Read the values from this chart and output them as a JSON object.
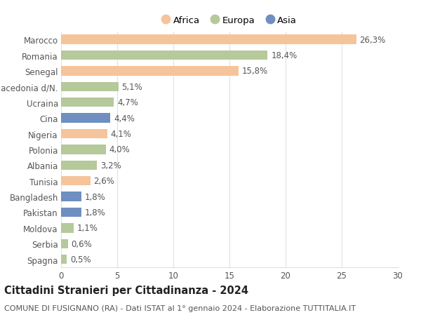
{
  "categories": [
    "Marocco",
    "Romania",
    "Senegal",
    "Macedonia d/N.",
    "Ucraina",
    "Cina",
    "Nigeria",
    "Polonia",
    "Albania",
    "Tunisia",
    "Bangladesh",
    "Pakistan",
    "Moldova",
    "Serbia",
    "Spagna"
  ],
  "values": [
    26.3,
    18.4,
    15.8,
    5.1,
    4.7,
    4.4,
    4.1,
    4.0,
    3.2,
    2.6,
    1.8,
    1.8,
    1.1,
    0.6,
    0.5
  ],
  "labels": [
    "26,3%",
    "18,4%",
    "15,8%",
    "5,1%",
    "4,7%",
    "4,4%",
    "4,1%",
    "4,0%",
    "3,2%",
    "2,6%",
    "1,8%",
    "1,8%",
    "1,1%",
    "0,6%",
    "0,5%"
  ],
  "continents": [
    "Africa",
    "Europa",
    "Africa",
    "Europa",
    "Europa",
    "Asia",
    "Africa",
    "Europa",
    "Europa",
    "Africa",
    "Asia",
    "Asia",
    "Europa",
    "Europa",
    "Europa"
  ],
  "colors": {
    "Africa": "#F5C49A",
    "Europa": "#B5C99A",
    "Asia": "#6E8FBF"
  },
  "xlim": [
    0,
    30
  ],
  "xticks": [
    0,
    5,
    10,
    15,
    20,
    25,
    30
  ],
  "title_bold": "Cittadini Stranieri per Cittadinanza - 2024",
  "subtitle": "COMUNE DI FUSIGNANO (RA) - Dati ISTAT al 1° gennaio 2024 - Elaborazione TUTTITALIA.IT",
  "background_color": "#ffffff",
  "grid_color": "#e0e0e0",
  "bar_height": 0.6,
  "label_fontsize": 8.5,
  "tick_fontsize": 8.5,
  "title_fontsize": 10.5,
  "subtitle_fontsize": 8
}
